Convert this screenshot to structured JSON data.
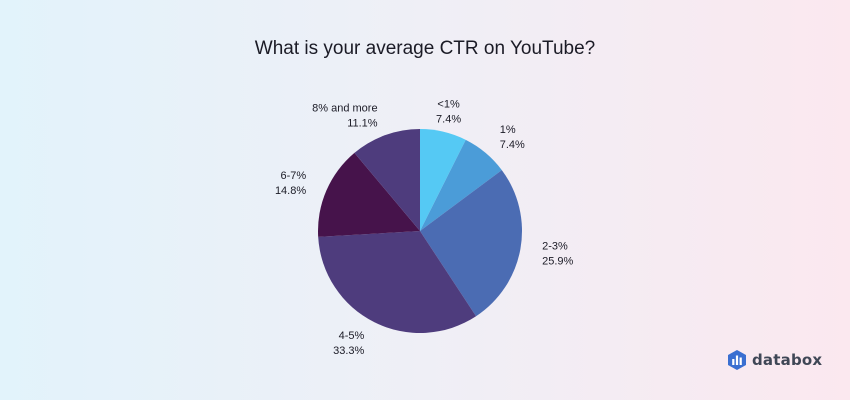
{
  "chart_data": {
    "type": "pie",
    "title": "What is your average CTR on YouTube?",
    "slices": [
      {
        "label": "<1%",
        "value": 7.4,
        "value_label": "7.4%",
        "color": "#55c9f4"
      },
      {
        "label": "1%",
        "value": 7.4,
        "value_label": "7.4%",
        "color": "#4b9cd8"
      },
      {
        "label": "2-3%",
        "value": 25.9,
        "value_label": "25.9%",
        "color": "#4b6cb3"
      },
      {
        "label": "4-5%",
        "value": 33.3,
        "value_label": "33.3%",
        "color": "#4e3c7d"
      },
      {
        "label": "6-7%",
        "value": 14.8,
        "value_label": "14.8%",
        "color": "#46134b"
      },
      {
        "label": "8% and more",
        "value": 11.1,
        "value_label": "11.1%",
        "color": "#4e3c7d"
      }
    ]
  },
  "brand": {
    "name": "databox",
    "icon": "databox-logo-icon"
  }
}
